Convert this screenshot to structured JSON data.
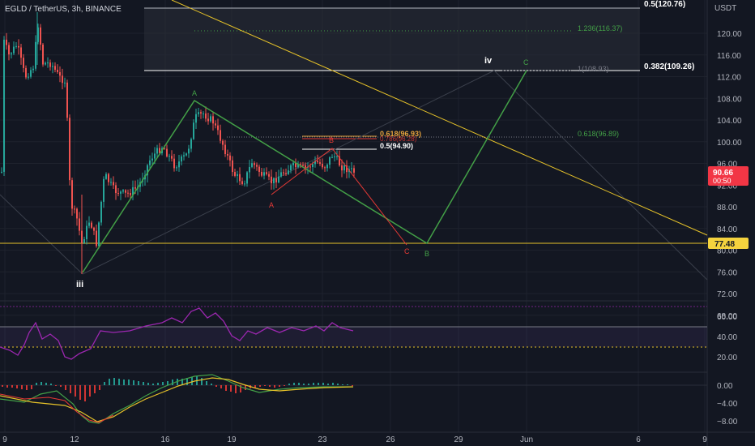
{
  "header": {
    "symbol_title": "EGLD / TetherUS, 3h, BINANCE",
    "currency": "USDT"
  },
  "price": {
    "current": "90.66",
    "countdown": "00:50",
    "support_level": "77.48"
  },
  "price_axis": [
    "120.00",
    "116.00",
    "112.00",
    "108.00",
    "104.00",
    "100.00",
    "96.00",
    "92.00",
    "88.00",
    "84.00",
    "80.00",
    "76.00",
    "72.00",
    "68.00"
  ],
  "rsi_axis": [
    "60.00",
    "40.00",
    "20.00"
  ],
  "macd_axis": [
    "0.00",
    "−4.00",
    "−8.00"
  ],
  "time_axis": [
    {
      "label": "9"
    },
    {
      "label": "12"
    },
    {
      "label": "16"
    },
    {
      "label": "19"
    },
    {
      "label": "23"
    },
    {
      "label": "26"
    },
    {
      "label": "29"
    },
    {
      "label": "Jun"
    },
    {
      "label": "6"
    },
    {
      "label": "9"
    }
  ],
  "fib_labels": {
    "top_05": "0.5(120.76)",
    "ext_1236": "1.236(116.37)",
    "ext_1": "1(108.93)",
    "retr_0382": "0.382(109.26)",
    "green_0618": "0.618(96.89)",
    "red_0618": "0.618(96.93)",
    "red_0786": "0.786(96.28)",
    "red_05": "0.5(94.90)"
  },
  "wave_labels": {
    "iii": "iii",
    "iv": "iv",
    "green_A": "A",
    "green_B": "B",
    "green_C": "C",
    "red_A": "A",
    "red_B": "B",
    "red_C": "C"
  },
  "colors": {
    "background": "#131722",
    "up": "#26a69a",
    "down": "#ef5350",
    "rsi": "#9c27b0",
    "elliott_green": "#43a047",
    "elliott_red": "#e53935",
    "trend_yellow": "#e6c229",
    "price_badge": "#f23645",
    "support_badge": "#f5d33e"
  }
}
